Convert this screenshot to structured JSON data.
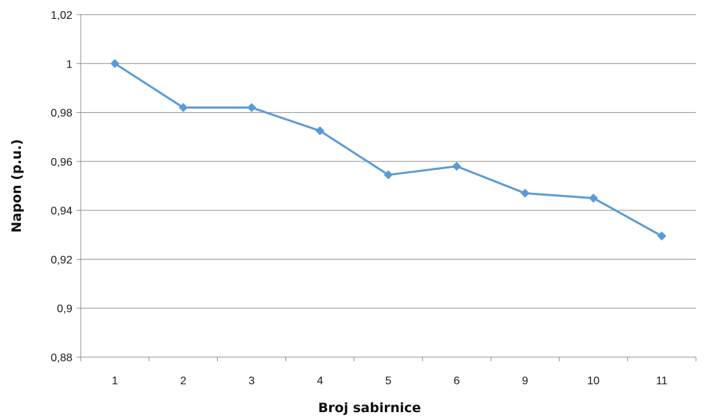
{
  "chart_data": {
    "type": "line",
    "title": "",
    "xlabel": "Broj sabirnice",
    "ylabel": "Napon (p.u.)",
    "categories": [
      "1",
      "2",
      "3",
      "4",
      "5",
      "6",
      "9",
      "10",
      "11"
    ],
    "series": [
      {
        "values": [
          1.0,
          0.982,
          0.982,
          0.9725,
          0.9545,
          0.958,
          0.947,
          0.945,
          0.9295
        ]
      }
    ],
    "ylim": [
      0.88,
      1.02
    ],
    "yticks": [
      0.88,
      0.9,
      0.92,
      0.94,
      0.96,
      0.98,
      1.0,
      1.02
    ],
    "ytick_labels": [
      "0,88",
      "0,9",
      "0,92",
      "0,94",
      "0,96",
      "0,98",
      "1",
      "1,02"
    ],
    "grid": true,
    "legend": "none",
    "colors": {
      "series": "#5b9bd5",
      "grid": "#8c8c8c",
      "axis": "#8c8c8c"
    },
    "marker": "diamond"
  }
}
